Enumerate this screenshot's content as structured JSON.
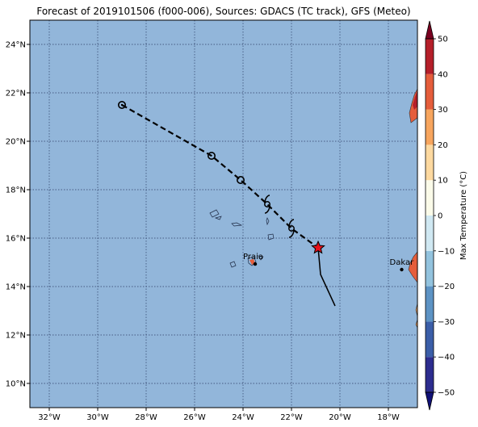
{
  "figure": {
    "title": "Forecast of 2019101506 (f000-006), Sources: GDACS (TC track), GFS (Meteo)"
  },
  "map": {
    "lon_range": [
      -32.8,
      -16.8
    ],
    "lat_range": [
      9.0,
      25.0
    ],
    "ocean_color": "#92b6da",
    "grid_color": "#2c3e66",
    "x_ticks": [
      {
        "value": -32,
        "label": "32°W"
      },
      {
        "value": -30,
        "label": "30°W"
      },
      {
        "value": -28,
        "label": "28°W"
      },
      {
        "value": -26,
        "label": "26°W"
      },
      {
        "value": -24,
        "label": "24°W"
      },
      {
        "value": -22,
        "label": "22°W"
      },
      {
        "value": -20,
        "label": "20°W"
      },
      {
        "value": -18,
        "label": "18°W"
      }
    ],
    "y_ticks": [
      {
        "value": 10,
        "label": "10°N"
      },
      {
        "value": 12,
        "label": "12°N"
      },
      {
        "value": 14,
        "label": "14°N"
      },
      {
        "value": 16,
        "label": "16°N"
      },
      {
        "value": 18,
        "label": "18°N"
      },
      {
        "value": 20,
        "label": "20°N"
      },
      {
        "value": 22,
        "label": "22°N"
      },
      {
        "value": 24,
        "label": "24°N"
      }
    ],
    "cities": [
      {
        "name": "Praia",
        "lon": -23.5,
        "lat": 14.93
      },
      {
        "name": "Dakar",
        "lon": -17.45,
        "lat": 14.7
      }
    ],
    "track_forecast": [
      {
        "lon": -29.0,
        "lat": 21.5,
        "marker": "circle-dot"
      },
      {
        "lon": -25.3,
        "lat": 19.4,
        "marker": "circle"
      },
      {
        "lon": -24.1,
        "lat": 18.4,
        "marker": "circle"
      },
      {
        "lon": -23.0,
        "lat": 17.4,
        "marker": "storm"
      },
      {
        "lon": -22.0,
        "lat": 16.4,
        "marker": "storm"
      },
      {
        "lon": -20.9,
        "lat": 15.6,
        "marker": "star"
      }
    ],
    "track_past": [
      {
        "lon": -20.9,
        "lat": 15.6
      },
      {
        "lon": -20.8,
        "lat": 14.5
      },
      {
        "lon": -20.2,
        "lat": 13.2
      }
    ]
  },
  "colorbar": {
    "label": "Max Temperature (°C)",
    "ticks": [
      50,
      40,
      30,
      20,
      10,
      0,
      -10,
      -20,
      -30,
      -40,
      -50
    ],
    "tick_labels": [
      "50",
      "40",
      "30",
      "20",
      "10",
      "0",
      "−10",
      "−20",
      "−30",
      "−40",
      "−50"
    ],
    "bands": [
      {
        "from": -50,
        "to": -40,
        "color": "#2d2d8f"
      },
      {
        "from": -40,
        "to": -30,
        "color": "#3b5ea8"
      },
      {
        "from": -30,
        "to": -20,
        "color": "#5d93c4"
      },
      {
        "from": -20,
        "to": -10,
        "color": "#93c3de"
      },
      {
        "from": -10,
        "to": 0,
        "color": "#d0e8f2"
      },
      {
        "from": 0,
        "to": 10,
        "color": "#fbfbe9"
      },
      {
        "from": 10,
        "to": 20,
        "color": "#fdd9a0"
      },
      {
        "from": 20,
        "to": 30,
        "color": "#f7a55e"
      },
      {
        "from": 30,
        "to": 40,
        "color": "#e55d3b"
      },
      {
        "from": 40,
        "to": 50,
        "color": "#b51f2a"
      }
    ],
    "under_color": "#111177",
    "over_color": "#7a0020"
  }
}
